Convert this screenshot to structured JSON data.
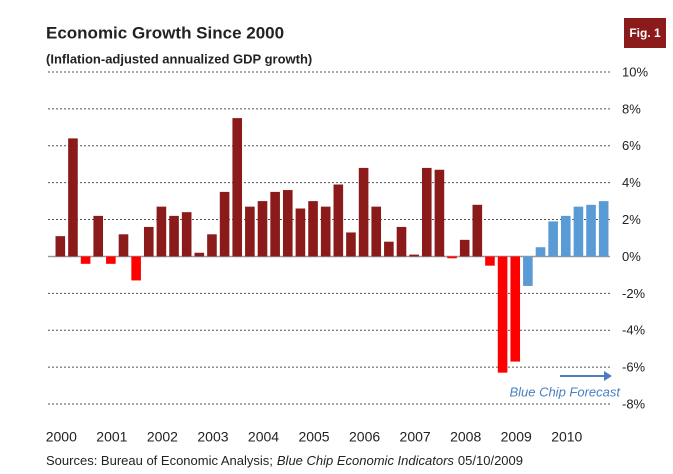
{
  "chart_data": {
    "type": "bar",
    "title": "Economic Growth Since 2000",
    "subtitle": "(Inflation-adjusted annualized  GDP growth)",
    "badge": "Fig. 1",
    "annotation": "Blue Chip Forecast",
    "source_prefix": "Sources: Bureau of Economic Analysis;",
    "source_italic": "Blue Chip Economic Indicators",
    "source_suffix": "05/10/2009",
    "categories": [
      "2000",
      null,
      null,
      null,
      "2001",
      null,
      null,
      null,
      "2002",
      null,
      null,
      null,
      "2003",
      null,
      null,
      null,
      "2004",
      null,
      null,
      null,
      "2005",
      null,
      null,
      null,
      "2006",
      null,
      null,
      null,
      "2007",
      null,
      null,
      null,
      "2008",
      null,
      null,
      null,
      "2009",
      null,
      null,
      null,
      "2010",
      null,
      null,
      null
    ],
    "values": [
      1.1,
      6.4,
      -0.4,
      2.2,
      -0.4,
      1.2,
      -1.3,
      1.6,
      2.7,
      2.2,
      2.4,
      0.2,
      1.2,
      3.5,
      7.5,
      2.7,
      3.0,
      3.5,
      3.6,
      2.6,
      3.0,
      2.7,
      3.9,
      1.3,
      4.8,
      2.7,
      0.8,
      1.6,
      0.1,
      4.8,
      4.7,
      -0.1,
      0.9,
      2.8,
      -0.5,
      -6.3,
      -5.7,
      -1.6,
      0.5,
      1.9,
      2.2,
      2.7,
      2.8,
      3.0
    ],
    "colors": [
      "#8b1a1a",
      "#8b1a1a",
      "#ff0000",
      "#8b1a1a",
      "#ff0000",
      "#8b1a1a",
      "#ff0000",
      "#8b1a1a",
      "#8b1a1a",
      "#8b1a1a",
      "#8b1a1a",
      "#8b1a1a",
      "#8b1a1a",
      "#8b1a1a",
      "#8b1a1a",
      "#8b1a1a",
      "#8b1a1a",
      "#8b1a1a",
      "#8b1a1a",
      "#8b1a1a",
      "#8b1a1a",
      "#8b1a1a",
      "#8b1a1a",
      "#8b1a1a",
      "#8b1a1a",
      "#8b1a1a",
      "#8b1a1a",
      "#8b1a1a",
      "#8b1a1a",
      "#8b1a1a",
      "#8b1a1a",
      "#ff0000",
      "#8b1a1a",
      "#8b1a1a",
      "#ff0000",
      "#ff0000",
      "#ff0000",
      "#5b9bd5",
      "#5b9bd5",
      "#5b9bd5",
      "#5b9bd5",
      "#5b9bd5",
      "#5b9bd5",
      "#5b9bd5"
    ],
    "ylim": [
      -8,
      10
    ],
    "yticks": [
      {
        "value": 10,
        "label": "10%"
      },
      {
        "value": 8,
        "label": "8%"
      },
      {
        "value": 6,
        "label": "6%"
      },
      {
        "value": 4,
        "label": "4%"
      },
      {
        "value": 2,
        "label": "2%"
      },
      {
        "value": 0,
        "label": "0%"
      },
      {
        "value": -2,
        "label": "-2%"
      },
      {
        "value": -4,
        "label": "-4%"
      },
      {
        "value": -6,
        "label": "-6%"
      },
      {
        "value": -8,
        "label": "-8%"
      }
    ],
    "grid": true
  }
}
